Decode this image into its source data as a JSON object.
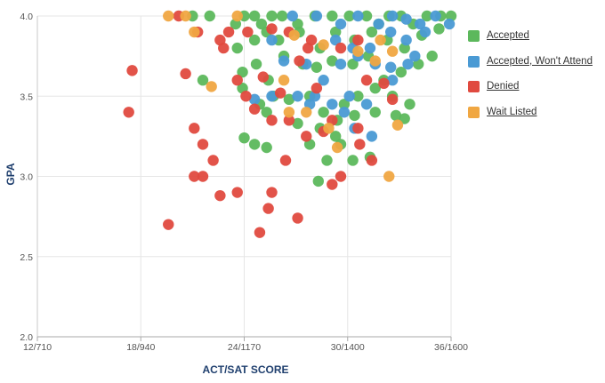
{
  "chart_data": {
    "type": "scatter",
    "xlabel": "ACT/SAT SCORE",
    "ylabel": "GPA",
    "x_ticks": [
      {
        "value": 12,
        "label": "12/710"
      },
      {
        "value": 18,
        "label": "18/940"
      },
      {
        "value": 24,
        "label": "24/1170"
      },
      {
        "value": 30,
        "label": "30/1400"
      },
      {
        "value": 36,
        "label": "36/1600"
      }
    ],
    "y_ticks": [
      {
        "value": 2.0,
        "label": "2.0"
      },
      {
        "value": 2.5,
        "label": "2.5"
      },
      {
        "value": 3.0,
        "label": "3.0"
      },
      {
        "value": 3.5,
        "label": "3.5"
      },
      {
        "value": 4.0,
        "label": "4.0"
      }
    ],
    "xlim": [
      12,
      36
    ],
    "ylim": [
      2.0,
      4.0
    ],
    "grid": "vertical-and-horizontal",
    "legend_position": "right",
    "series": [
      {
        "name": "Accepted",
        "color": "#5cb85c",
        "points": [
          [
            21,
            4.0
          ],
          [
            22,
            4.0
          ],
          [
            23.5,
            3.95
          ],
          [
            24,
            4.0
          ],
          [
            24.6,
            4.0
          ],
          [
            25,
            3.95
          ],
          [
            25.6,
            4.0
          ],
          [
            26.2,
            4.0
          ],
          [
            27.1,
            3.95
          ],
          [
            28.1,
            4.0
          ],
          [
            29.1,
            4.0
          ],
          [
            30.1,
            4.0
          ],
          [
            31.1,
            4.0
          ],
          [
            31.8,
            3.95
          ],
          [
            32.4,
            4.0
          ],
          [
            33.1,
            4.0
          ],
          [
            33.8,
            3.95
          ],
          [
            34.6,
            4.0
          ],
          [
            35.4,
            4.0
          ],
          [
            36,
            4.0
          ],
          [
            23.6,
            3.8
          ],
          [
            24.6,
            3.85
          ],
          [
            25.3,
            3.9
          ],
          [
            26.0,
            3.85
          ],
          [
            27.2,
            3.9
          ],
          [
            28.4,
            3.8
          ],
          [
            29.3,
            3.9
          ],
          [
            30.4,
            3.85
          ],
          [
            31.4,
            3.9
          ],
          [
            32.3,
            3.85
          ],
          [
            33.3,
            3.8
          ],
          [
            34.3,
            3.88
          ],
          [
            35.3,
            3.92
          ],
          [
            23.9,
            3.65
          ],
          [
            24.7,
            3.7
          ],
          [
            25.4,
            3.6
          ],
          [
            26.3,
            3.75
          ],
          [
            27.4,
            3.7
          ],
          [
            28.2,
            3.68
          ],
          [
            29.1,
            3.72
          ],
          [
            30.3,
            3.7
          ],
          [
            31.2,
            3.75
          ],
          [
            32.1,
            3.6
          ],
          [
            33.1,
            3.65
          ],
          [
            34.1,
            3.7
          ],
          [
            34.9,
            3.75
          ],
          [
            21.6,
            3.6
          ],
          [
            23.9,
            3.55
          ],
          [
            24.9,
            3.45
          ],
          [
            25.7,
            3.5
          ],
          [
            26.6,
            3.48
          ],
          [
            27.8,
            3.5
          ],
          [
            28.6,
            3.4
          ],
          [
            29.8,
            3.45
          ],
          [
            30.6,
            3.5
          ],
          [
            31.6,
            3.55
          ],
          [
            32.6,
            3.5
          ],
          [
            33.6,
            3.45
          ],
          [
            25.3,
            3.4
          ],
          [
            27.1,
            3.33
          ],
          [
            28.4,
            3.3
          ],
          [
            29.4,
            3.35
          ],
          [
            30.4,
            3.38
          ],
          [
            31.6,
            3.4
          ],
          [
            32.8,
            3.38
          ],
          [
            33.3,
            3.36
          ],
          [
            24.0,
            3.24
          ],
          [
            24.6,
            3.2
          ],
          [
            25.3,
            3.18
          ],
          [
            27.8,
            3.2
          ],
          [
            28.8,
            3.1
          ],
          [
            29.6,
            3.2
          ],
          [
            30.3,
            3.1
          ],
          [
            31.3,
            3.12
          ],
          [
            28.3,
            2.97
          ],
          [
            29.3,
            3.25
          ]
        ]
      },
      {
        "name": "Accepted, Won't Attend",
        "color": "#4a9ad4",
        "points": [
          [
            26.8,
            4.0
          ],
          [
            28.2,
            4.0
          ],
          [
            29.6,
            3.95
          ],
          [
            30.6,
            4.0
          ],
          [
            31.8,
            3.95
          ],
          [
            32.6,
            4.0
          ],
          [
            33.4,
            3.98
          ],
          [
            34.2,
            3.95
          ],
          [
            35.1,
            4.0
          ],
          [
            35.9,
            3.95
          ],
          [
            29.3,
            3.85
          ],
          [
            30.3,
            3.8
          ],
          [
            31.3,
            3.8
          ],
          [
            32.5,
            3.9
          ],
          [
            33.4,
            3.85
          ],
          [
            34.5,
            3.9
          ],
          [
            25.6,
            3.85
          ],
          [
            27.6,
            3.7
          ],
          [
            28.6,
            3.6
          ],
          [
            29.6,
            3.7
          ],
          [
            30.6,
            3.75
          ],
          [
            31.6,
            3.7
          ],
          [
            32.5,
            3.68
          ],
          [
            33.5,
            3.7
          ],
          [
            27.1,
            3.5
          ],
          [
            28.1,
            3.5
          ],
          [
            29.1,
            3.45
          ],
          [
            30.1,
            3.5
          ],
          [
            31.1,
            3.45
          ],
          [
            32.6,
            3.6
          ],
          [
            24.6,
            3.48
          ],
          [
            25.6,
            3.5
          ],
          [
            30.4,
            3.3
          ],
          [
            31.4,
            3.25
          ],
          [
            27.8,
            3.45
          ],
          [
            26.3,
            3.72
          ],
          [
            33.9,
            3.75
          ],
          [
            29.8,
            3.4
          ]
        ]
      },
      {
        "name": "Denied",
        "color": "#e04a3f",
        "points": [
          [
            20.2,
            4.0
          ],
          [
            21.3,
            3.9
          ],
          [
            23.1,
            3.9
          ],
          [
            24.2,
            3.9
          ],
          [
            25.6,
            3.92
          ],
          [
            26.6,
            3.9
          ],
          [
            27.7,
            3.8
          ],
          [
            29.6,
            3.8
          ],
          [
            30.6,
            3.85
          ],
          [
            22.8,
            3.8
          ],
          [
            17.5,
            3.66
          ],
          [
            20.6,
            3.64
          ],
          [
            22.6,
            3.85
          ],
          [
            23.6,
            3.6
          ],
          [
            25.1,
            3.62
          ],
          [
            26.1,
            3.52
          ],
          [
            27.2,
            3.72
          ],
          [
            28.2,
            3.55
          ],
          [
            17.3,
            3.4
          ],
          [
            24.1,
            3.5
          ],
          [
            24.6,
            3.42
          ],
          [
            25.6,
            3.35
          ],
          [
            26.6,
            3.35
          ],
          [
            27.6,
            3.25
          ],
          [
            29.1,
            3.35
          ],
          [
            30.6,
            3.3
          ],
          [
            31.1,
            3.6
          ],
          [
            32.1,
            3.58
          ],
          [
            32.6,
            3.48
          ],
          [
            21.1,
            3.3
          ],
          [
            21.6,
            3.2
          ],
          [
            22.2,
            3.1
          ],
          [
            21.1,
            3.0
          ],
          [
            21.6,
            3.0
          ],
          [
            22.6,
            2.88
          ],
          [
            23.6,
            2.9
          ],
          [
            25.6,
            2.9
          ],
          [
            25.4,
            2.8
          ],
          [
            27.1,
            2.74
          ],
          [
            24.9,
            2.65
          ],
          [
            19.6,
            2.7
          ],
          [
            26.4,
            3.1
          ],
          [
            28.6,
            3.28
          ],
          [
            29.6,
            3.0
          ],
          [
            30.7,
            3.2
          ],
          [
            31.4,
            3.1
          ],
          [
            29.1,
            2.95
          ],
          [
            27.9,
            3.85
          ]
        ]
      },
      {
        "name": "Wait Listed",
        "color": "#f0a742",
        "points": [
          [
            19.6,
            4.0
          ],
          [
            20.6,
            4.0
          ],
          [
            21.1,
            3.9
          ],
          [
            22.1,
            3.56
          ],
          [
            23.6,
            4.0
          ],
          [
            26.9,
            3.88
          ],
          [
            27.6,
            3.4
          ],
          [
            26.3,
            3.6
          ],
          [
            28.9,
            3.3
          ],
          [
            29.4,
            3.18
          ],
          [
            30.6,
            3.78
          ],
          [
            31.6,
            3.72
          ],
          [
            32.6,
            3.78
          ],
          [
            32.9,
            3.32
          ],
          [
            32.4,
            3.0
          ],
          [
            26.6,
            3.4
          ],
          [
            31.9,
            3.85
          ],
          [
            28.6,
            3.82
          ]
        ]
      }
    ]
  }
}
